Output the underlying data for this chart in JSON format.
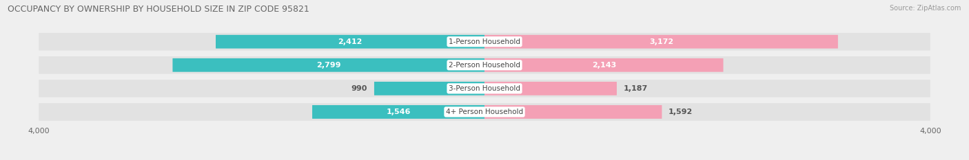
{
  "title": "OCCUPANCY BY OWNERSHIP BY HOUSEHOLD SIZE IN ZIP CODE 95821",
  "source": "Source: ZipAtlas.com",
  "categories": [
    "1-Person Household",
    "2-Person Household",
    "3-Person Household",
    "4+ Person Household"
  ],
  "owner_values": [
    2412,
    2799,
    990,
    1546
  ],
  "renter_values": [
    3172,
    2143,
    1187,
    1592
  ],
  "owner_color": "#3bbfbf",
  "renter_color": "#f4a0b5",
  "axis_max": 4000,
  "bg_color": "#efefef",
  "row_bg_color": "#e2e2e2",
  "title_fontsize": 9,
  "bar_label_fontsize": 8,
  "category_fontsize": 7.5,
  "axis_label_fontsize": 8,
  "legend_fontsize": 8,
  "source_fontsize": 7
}
